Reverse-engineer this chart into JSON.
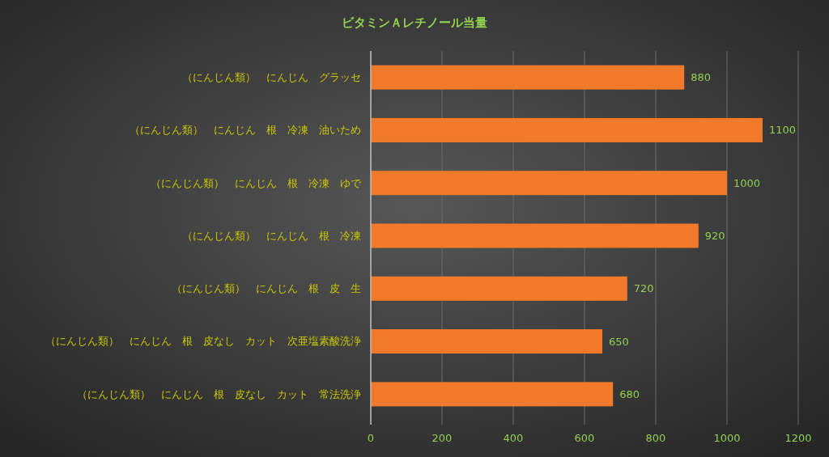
{
  "chart_data": {
    "type": "bar",
    "orientation": "horizontal",
    "title": "ビタミンＡレチノール当量",
    "categories": [
      "（にんじん類）　にんじん　グラッセ",
      "（にんじん類）　にんじん　根　冷凍　油いため",
      "（にんじん類）　にんじん　根　冷凍　ゆで",
      "（にんじん類）　にんじん　根　冷凍",
      "（にんじん類）　にんじん　根　皮　生",
      "（にんじん類）　にんじん　根　皮なし　カット　次亜塩素酸洗浄",
      "（にんじん類）　にんじん　根　皮なし　カット　常法洗浄"
    ],
    "values": [
      880,
      1100,
      1000,
      920,
      720,
      650,
      680
    ],
    "color": "#f07a2a",
    "xlim": [
      0,
      1200
    ],
    "xticks": [
      0,
      200,
      400,
      600,
      800,
      1000,
      1200
    ],
    "grid": "x",
    "data_labels": true
  }
}
